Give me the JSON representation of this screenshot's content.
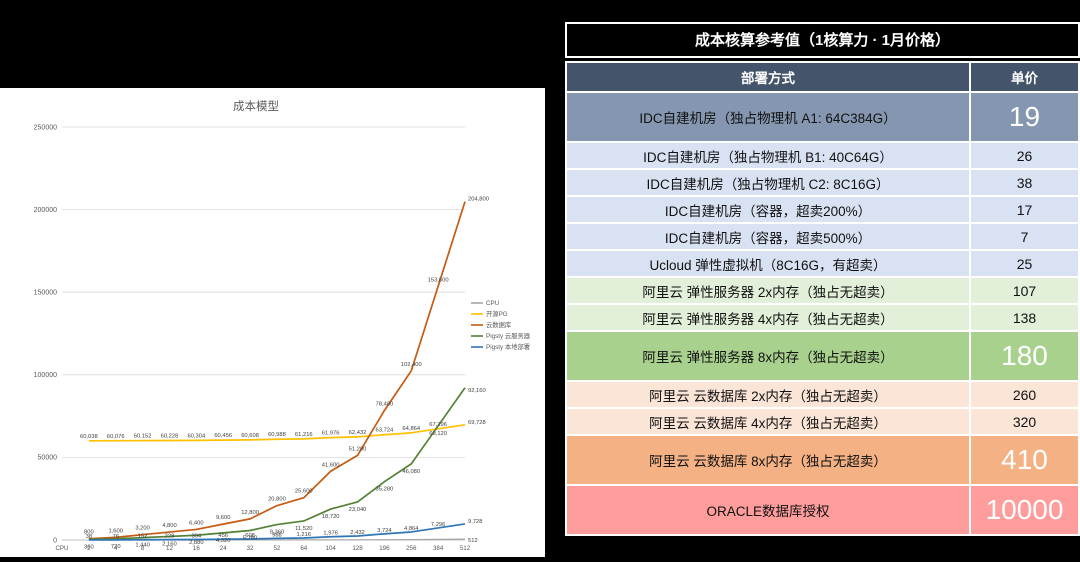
{
  "chart_data": [
    {
      "type": "line",
      "title": "成本模型",
      "x_origin_label": "CPU",
      "categories": [
        "2",
        "4",
        "8",
        "12",
        "16",
        "24",
        "32",
        "52",
        "64",
        "104",
        "128",
        "196",
        "256",
        "384",
        "512"
      ],
      "ylim": [
        0,
        250000
      ],
      "yticks": [
        0,
        50000,
        100000,
        150000,
        200000,
        250000
      ],
      "grid": true,
      "legend_position": "right",
      "series": [
        {
          "name": "CPU",
          "color": "#a6a6a6",
          "values": [
            2,
            4,
            8,
            12,
            16,
            24,
            32,
            52,
            64,
            104,
            128,
            196,
            256,
            384,
            512
          ]
        },
        {
          "name": "开源PG",
          "color": "#ffc000",
          "values": [
            60038,
            60076,
            60152,
            60228,
            60304,
            60456,
            60608,
            60988,
            61216,
            61976,
            62432,
            63724,
            64864,
            67296,
            69728
          ]
        },
        {
          "name": "云数据库",
          "color": "#c55a11",
          "values": [
            800,
            1600,
            3200,
            4800,
            6400,
            9600,
            12800,
            20800,
            25600,
            41600,
            51200,
            78400,
            102400,
            153600,
            204800
          ]
        },
        {
          "name": "Pigsty 云服务器",
          "color": "#538135",
          "values": [
            360,
            720,
            1440,
            2160,
            2880,
            4320,
            5760,
            9360,
            11520,
            18720,
            23040,
            35280,
            46080,
            69120,
            92160
          ]
        },
        {
          "name": "Pigsty 本地部署",
          "color": "#2e75b6",
          "values": [
            38,
            76,
            152,
            228,
            304,
            456,
            608,
            988,
            1216,
            1976,
            2432,
            3724,
            4864,
            7296,
            9728
          ]
        }
      ]
    },
    {
      "type": "table",
      "title": "成本核算参考值（1核算力 · 1月价格）",
      "columns": [
        "部署方式",
        "单价"
      ],
      "rows": [
        {
          "label": "IDC自建机房（独占物理机 A1: 64C384G）",
          "price": "19",
          "bg": "#8496B0",
          "highlight": true
        },
        {
          "label": "IDC自建机房（独占物理机 B1: 40C64G）",
          "price": "26",
          "bg": "#D9E2F3",
          "highlight": false
        },
        {
          "label": "IDC自建机房（独占物理机 C2: 8C16G）",
          "price": "38",
          "bg": "#D9E2F3",
          "highlight": false
        },
        {
          "label": "IDC自建机房（容器，超卖200%）",
          "price": "17",
          "bg": "#D9E2F3",
          "highlight": false
        },
        {
          "label": "IDC自建机房（容器，超卖500%）",
          "price": "7",
          "bg": "#D9E2F3",
          "highlight": false
        },
        {
          "label": "Ucloud 弹性虚拟机（8C16G，有超卖）",
          "price": "25",
          "bg": "#D9E2F3",
          "highlight": false
        },
        {
          "label": "阿里云 弹性服务器 2x内存（独占无超卖）",
          "price": "107",
          "bg": "#E2EFD9",
          "highlight": false
        },
        {
          "label": "阿里云 弹性服务器 4x内存（独占无超卖）",
          "price": "138",
          "bg": "#E2EFD9",
          "highlight": false
        },
        {
          "label": "阿里云 弹性服务器 8x内存（独占无超卖）",
          "price": "180",
          "bg": "#A9D18E",
          "highlight": true
        },
        {
          "label": "阿里云 云数据库 2x内存（独占无超卖）",
          "price": "260",
          "bg": "#FBE5D6",
          "highlight": false
        },
        {
          "label": "阿里云 云数据库 4x内存（独占无超卖）",
          "price": "320",
          "bg": "#FBE5D6",
          "highlight": false
        },
        {
          "label": "阿里云 云数据库 8x内存（独占无超卖）",
          "price": "410",
          "bg": "#F4B183",
          "highlight": true
        },
        {
          "label": "ORACLE数据库授权",
          "price": "10000",
          "bg": "#FF9D9D",
          "highlight": true
        }
      ]
    }
  ]
}
